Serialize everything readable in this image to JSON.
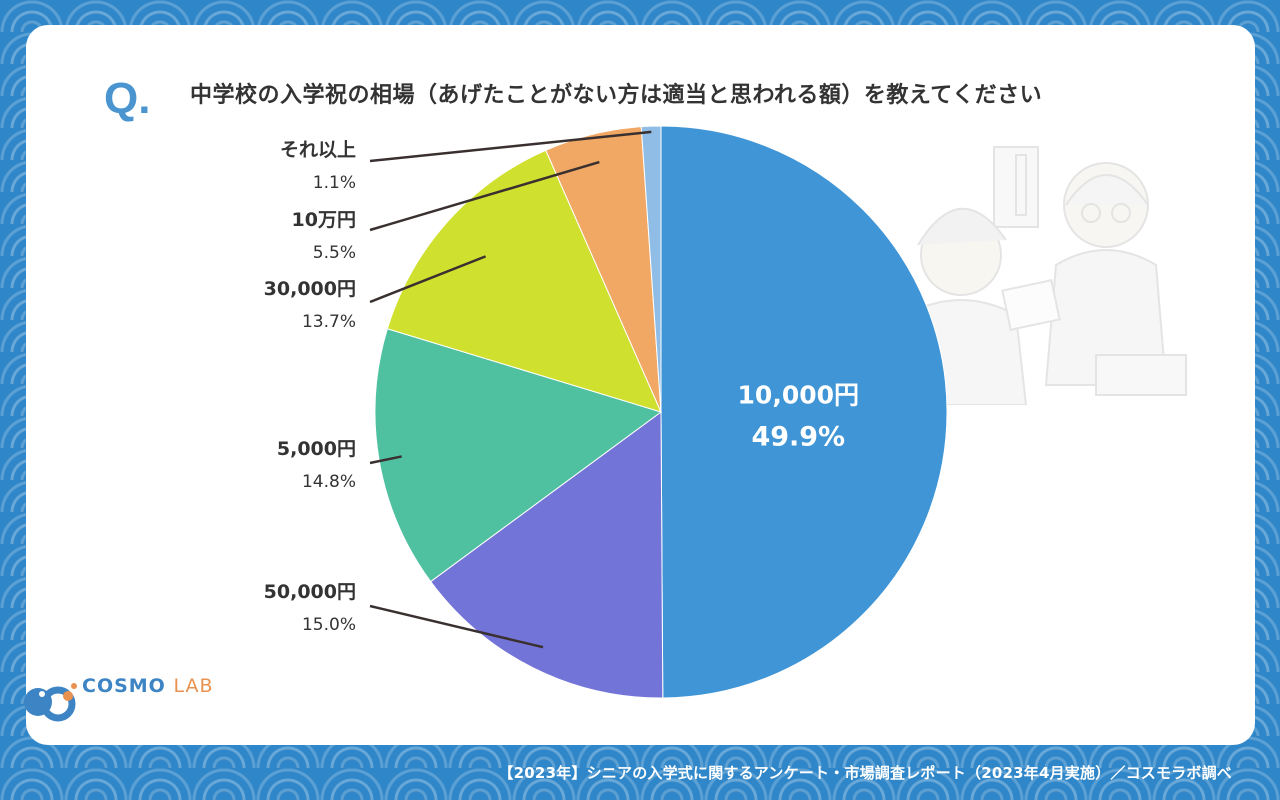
{
  "question": {
    "mark": "Q",
    "dot": ".",
    "title": "中学校の入学祝の相場（あげたことがない方は適当と思われる額）を教えてください"
  },
  "chart_data": {
    "type": "pie",
    "title": "中学校の入学祝の相場（あげたことがない方は適当と思われる額）を教えてください",
    "start_angle_deg": 0,
    "direction": "clockwise",
    "slices": [
      {
        "label": "10,000円",
        "value": 49.9,
        "display": "49.9%",
        "color": "#3f95d5",
        "label_inside": true
      },
      {
        "label": "50,000円",
        "value": 15.0,
        "display": "15.0%",
        "color": "#7374d8",
        "label_inside": false
      },
      {
        "label": "5,000円",
        "value": 14.8,
        "display": "14.8%",
        "color": "#4fc1a0",
        "label_inside": false
      },
      {
        "label": "30,000円",
        "value": 13.7,
        "display": "13.7%",
        "color": "#d0e02e",
        "label_inside": false
      },
      {
        "label": "10万円",
        "value": 5.5,
        "display": "5.5%",
        "color": "#f0a864",
        "label_inside": false
      },
      {
        "label": "それ以上",
        "value": 1.1,
        "display": "1.1%",
        "color": "#8fbde6",
        "label_inside": false
      }
    ]
  },
  "logo": {
    "cosmo": "COSMO",
    "lab": "LAB"
  },
  "source": "【2023年】シニアの入学式に関するアンケート・市場調査レポート（2023年4月実施）／コスモラボ調べ",
  "colors": {
    "frame_blue": "#2f86c8",
    "title_text": "#333333",
    "label_text": "#333333",
    "accent": "#4a94cf"
  }
}
